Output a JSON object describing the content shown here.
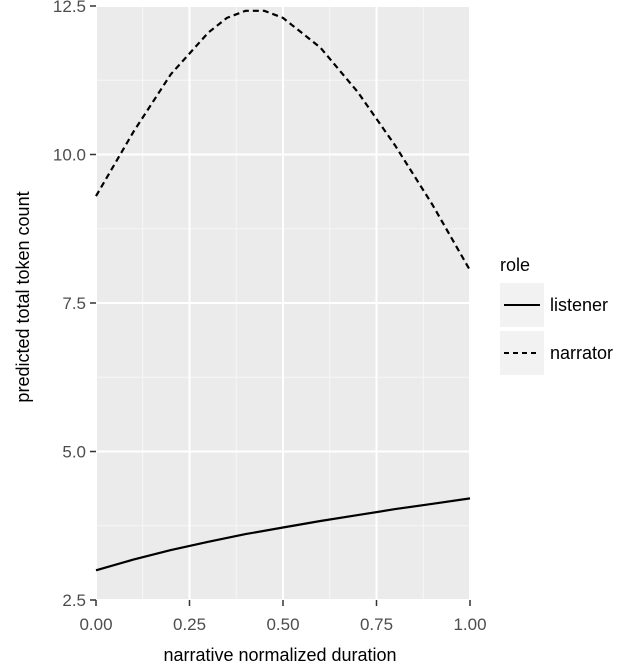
{
  "chart_data": {
    "type": "line",
    "xlabel": "narrative normalized duration",
    "ylabel": "predicted total token count",
    "xlim": [
      0,
      1
    ],
    "ylim": [
      2.5,
      12.5
    ],
    "x_ticks": [
      "0.00",
      "0.25",
      "0.50",
      "0.75",
      "1.00"
    ],
    "y_ticks": [
      "2.5",
      "5.0",
      "7.5",
      "10.0",
      "12.5"
    ],
    "grid": true,
    "legend": {
      "title": "role",
      "placement": "right",
      "entries": [
        "listener",
        "narrator"
      ]
    },
    "series": [
      {
        "name": "listener",
        "line_style": "solid",
        "color": "#000000",
        "x": [
          0.0,
          0.1,
          0.2,
          0.3,
          0.4,
          0.5,
          0.6,
          0.7,
          0.8,
          0.9,
          1.0
        ],
        "y": [
          3.0,
          3.18,
          3.34,
          3.48,
          3.61,
          3.72,
          3.83,
          3.93,
          4.03,
          4.12,
          4.21
        ]
      },
      {
        "name": "narrator",
        "line_style": "dashed",
        "color": "#000000",
        "x": [
          0.0,
          0.1,
          0.2,
          0.3,
          0.35,
          0.4,
          0.45,
          0.5,
          0.6,
          0.7,
          0.8,
          0.9,
          1.0
        ],
        "y": [
          9.3,
          10.38,
          11.35,
          12.05,
          12.3,
          12.42,
          12.42,
          12.3,
          11.8,
          11.05,
          10.15,
          9.15,
          8.05
        ]
      }
    ],
    "colors": {
      "panel_background": "#ebebeb",
      "grid_major": "#ffffff",
      "legend_key_background": "#f2f2f2"
    }
  }
}
